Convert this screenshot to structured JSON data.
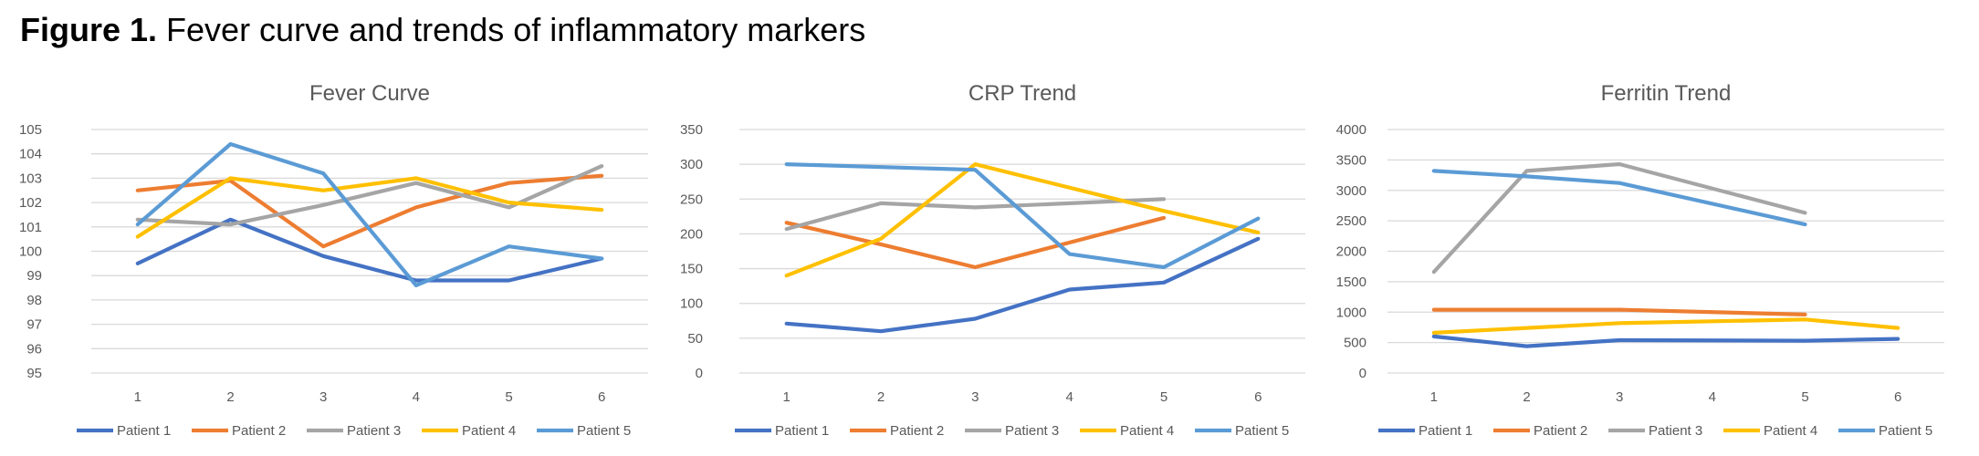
{
  "figure": {
    "label": "Figure 1.",
    "caption": " Fever curve and trends of inflammatory markers"
  },
  "chart_data": [
    {
      "type": "line",
      "title": "Fever Curve",
      "xlabel": "",
      "ylabel": "",
      "x": [
        1,
        2,
        3,
        4,
        5,
        6
      ],
      "ylim": [
        95,
        105
      ],
      "yticks": [
        95,
        96,
        97,
        98,
        99,
        100,
        101,
        102,
        103,
        104,
        105
      ],
      "grid": true,
      "legend": "bottom",
      "series": [
        {
          "name": "Patient 1",
          "color": "#4472C4",
          "values": [
            99.5,
            101.3,
            99.8,
            98.8,
            98.8,
            99.7
          ]
        },
        {
          "name": "Patient 2",
          "color": "#ED7D31",
          "values": [
            102.5,
            102.9,
            100.2,
            101.8,
            102.8,
            103.1
          ]
        },
        {
          "name": "Patient 3",
          "color": "#A5A5A5",
          "values": [
            101.3,
            101.1,
            101.9,
            102.8,
            101.8,
            103.5
          ]
        },
        {
          "name": "Patient 4",
          "color": "#FFC000",
          "values": [
            100.6,
            103.0,
            102.5,
            103.0,
            102.0,
            101.7
          ]
        },
        {
          "name": "Patient 5",
          "color": "#5B9BD5",
          "values": [
            101.1,
            104.4,
            103.2,
            98.6,
            100.2,
            99.7
          ]
        }
      ]
    },
    {
      "type": "line",
      "title": "CRP Trend",
      "xlabel": "",
      "ylabel": "",
      "x": [
        1,
        2,
        3,
        4,
        5,
        6
      ],
      "ylim": [
        0,
        350
      ],
      "yticks": [
        0,
        50,
        100,
        150,
        200,
        250,
        300,
        350
      ],
      "grid": true,
      "legend": "bottom",
      "series": [
        {
          "name": "Patient 1",
          "color": "#4472C4",
          "values": [
            71,
            60,
            78,
            120,
            130,
            193
          ]
        },
        {
          "name": "Patient 2",
          "color": "#ED7D31",
          "values": [
            216,
            185,
            152,
            null,
            223,
            null
          ]
        },
        {
          "name": "Patient 3",
          "color": "#A5A5A5",
          "values": [
            207,
            244,
            238,
            null,
            250,
            null
          ]
        },
        {
          "name": "Patient 4",
          "color": "#FFC000",
          "values": [
            140,
            193,
            300,
            null,
            233,
            202
          ]
        },
        {
          "name": "Patient 5",
          "color": "#5B9BD5",
          "values": [
            300,
            null,
            292,
            171,
            152,
            222
          ]
        }
      ]
    },
    {
      "type": "line",
      "title": "Ferritin Trend",
      "xlabel": "",
      "ylabel": "",
      "x": [
        1,
        2,
        3,
        4,
        5,
        6
      ],
      "ylim": [
        0,
        4000
      ],
      "yticks": [
        0,
        500,
        1000,
        1500,
        2000,
        2500,
        3000,
        3500,
        4000
      ],
      "grid": true,
      "legend": "bottom",
      "series": [
        {
          "name": "Patient 1",
          "color": "#4472C4",
          "values": [
            600,
            440,
            540,
            null,
            530,
            560
          ]
        },
        {
          "name": "Patient 2",
          "color": "#ED7D31",
          "values": [
            1040,
            null,
            1040,
            null,
            960,
            null
          ]
        },
        {
          "name": "Patient 3",
          "color": "#A5A5A5",
          "values": [
            1660,
            3320,
            3430,
            null,
            2630,
            null
          ]
        },
        {
          "name": "Patient 4",
          "color": "#FFC000",
          "values": [
            660,
            null,
            820,
            null,
            880,
            740
          ]
        },
        {
          "name": "Patient 5",
          "color": "#5B9BD5",
          "values": [
            3320,
            3230,
            3120,
            null,
            2440,
            null
          ]
        }
      ]
    }
  ]
}
